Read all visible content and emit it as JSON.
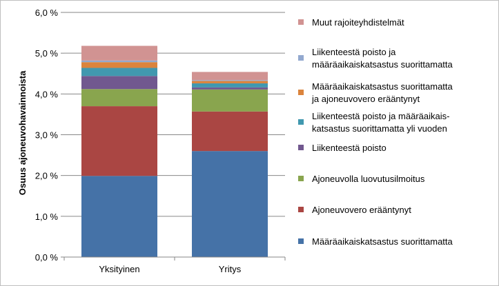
{
  "chart_data": {
    "type": "bar",
    "stacked": true,
    "ylabel": "Osuus ajoneuvohavainnoista",
    "ylim": [
      0,
      6
    ],
    "yticks": [
      "0,0 %",
      "1,0 %",
      "2,0 %",
      "3,0 %",
      "4,0 %",
      "5,0 %",
      "6,0 %"
    ],
    "categories": [
      "Yksityinen",
      "Yritys"
    ],
    "grid": true,
    "legend_position": "right",
    "series": [
      {
        "name": "Määräaikaiskatsastus suorittamatta",
        "color": "#4572a7",
        "values": [
          1.99,
          2.6
        ]
      },
      {
        "name": "Ajoneuvovero erääntynyt",
        "color": "#aa4643",
        "values": [
          1.71,
          0.97
        ]
      },
      {
        "name": "Ajoneuvolla luovutusilmoitus",
        "color": "#89a54e",
        "values": [
          0.42,
          0.54
        ]
      },
      {
        "name": "Liikenteestä poisto",
        "color": "#71588f",
        "values": [
          0.32,
          0.05
        ]
      },
      {
        "name": "Liikenteestä poisto ja määräaikaiskatsastus suorittamatta yli vuoden",
        "legend_lines": [
          "Liikenteestä poisto ja määräaikais-",
          "katsastus suorittamatta yli vuoden"
        ],
        "color": "#4198af",
        "values": [
          0.2,
          0.1
        ]
      },
      {
        "name": "Määräaikaiskatsastus suorittamatta ja ajoneuvovero erääntynyt",
        "legend_lines": [
          "Määräaikaiskatsastus suorittamatta",
          "ja ajoneuvovero erääntynyt"
        ],
        "color": "#db843d",
        "values": [
          0.14,
          0.06
        ]
      },
      {
        "name": "Liikenteestä poisto ja määräaikaiskatsastus suorittamatta",
        "legend_lines": [
          "Liikenteestä poisto ja",
          "määräaikaiskatsastus suorittamatta"
        ],
        "color": "#93a9cf",
        "values": [
          0.04,
          0.02
        ]
      },
      {
        "name": "Muut rajoiteyhdistelmät",
        "color": "#d19392",
        "values": [
          0.36,
          0.2
        ]
      }
    ]
  }
}
